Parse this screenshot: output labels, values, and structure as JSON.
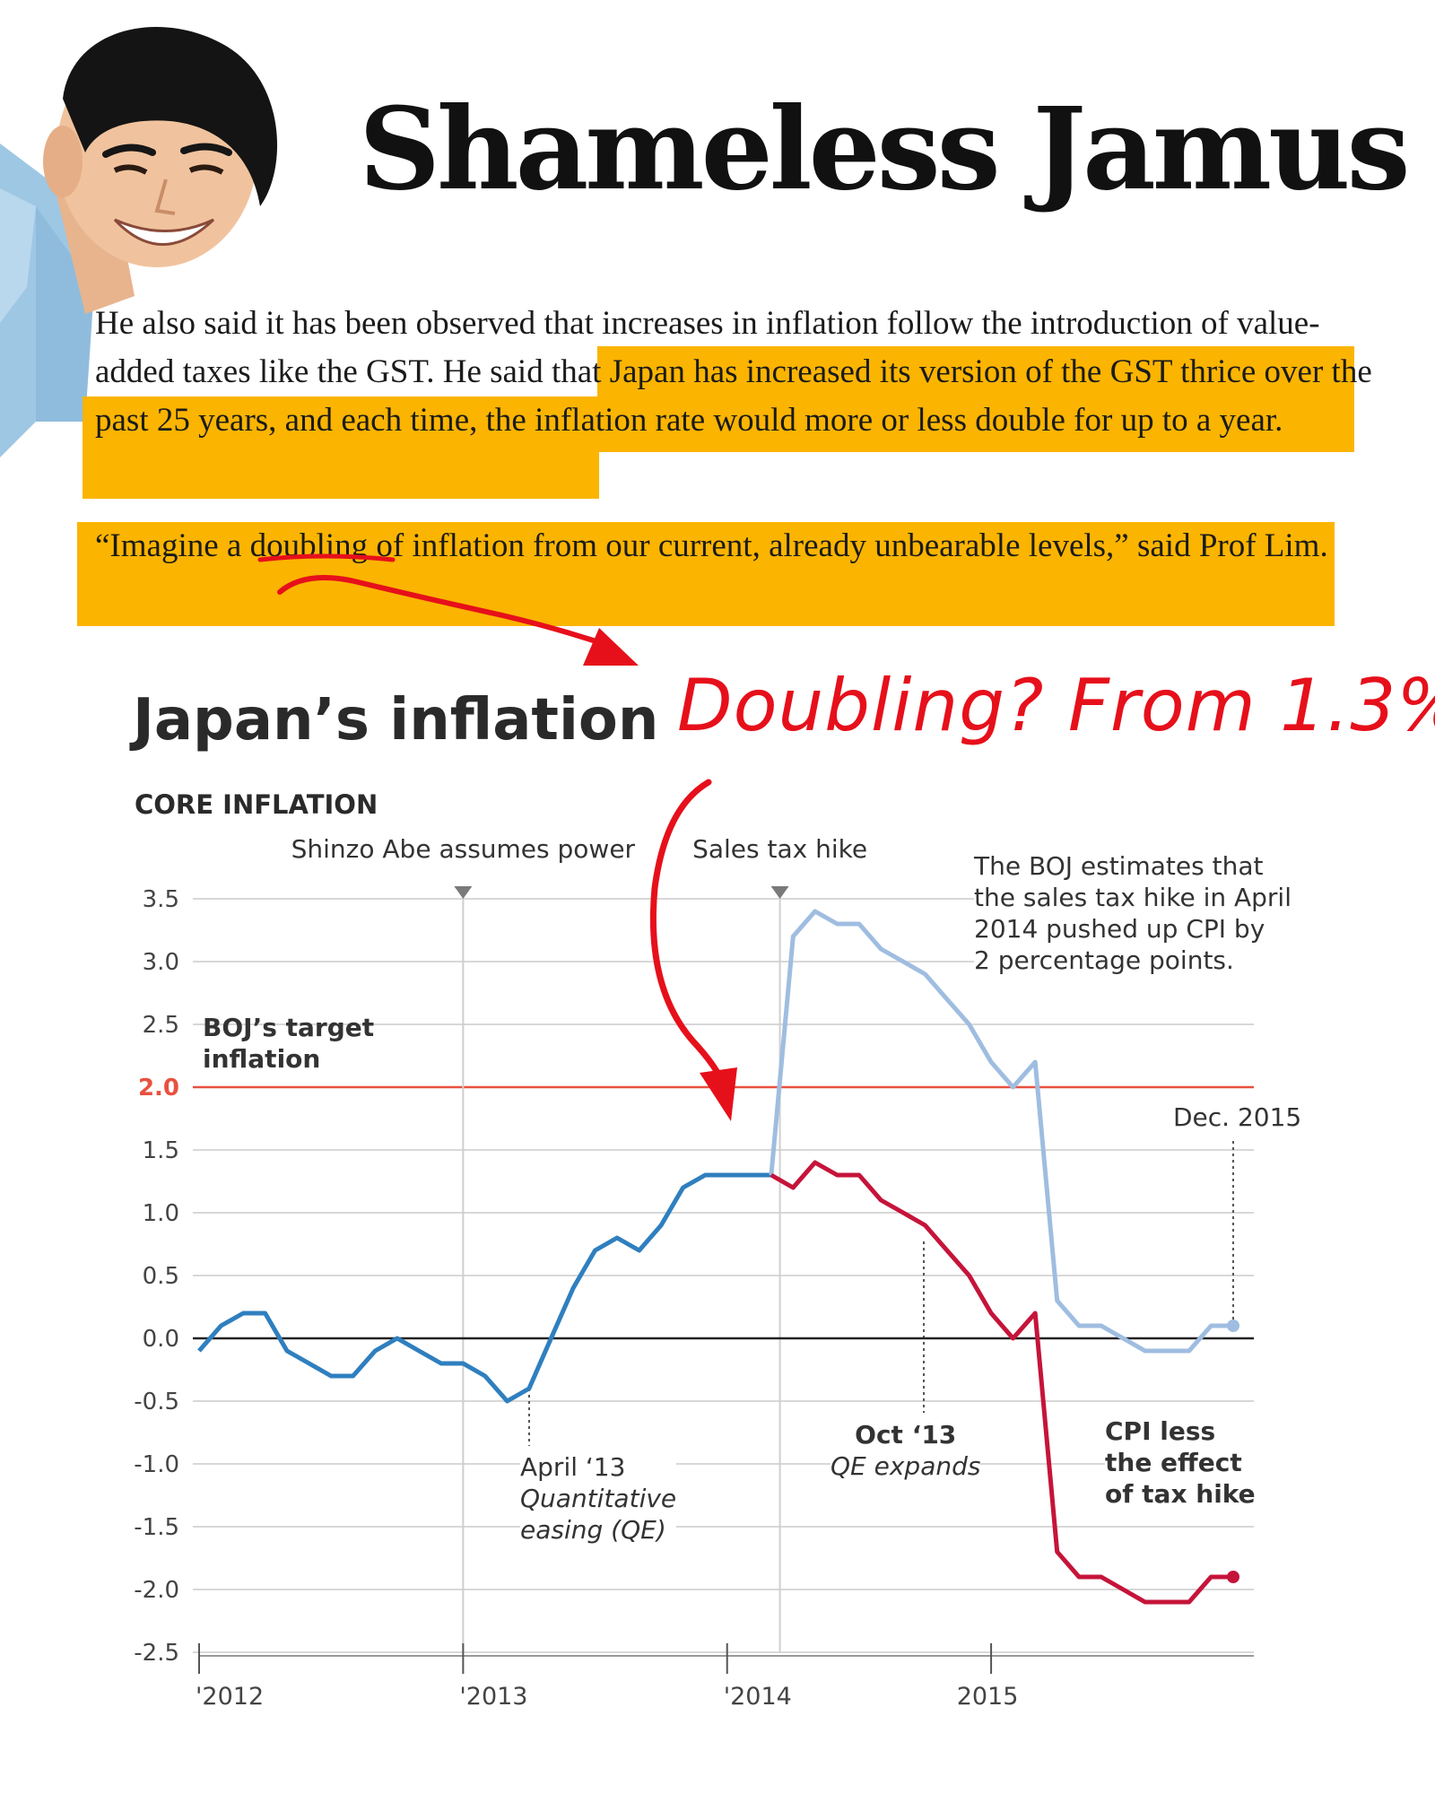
{
  "headline": "Shameless Jamus",
  "article": {
    "para1_plain": "He also said it has been observed that increases in inflation follow the introduction of value-added taxes like the GST. ",
    "para1_highlight": "He said that Japan has increased its version of the GST thrice over the past 25 years, and each time, the inflation rate would more or less double for up to a year.",
    "para2_quote_start": "“Imagine a ",
    "para2_underlined": "doubling",
    "para2_quote_end": " of inflation from our current, already unbearable levels,” said Prof Lim."
  },
  "handwritten_note": "Doubling? From 1.3%",
  "colors": {
    "highlight": "#fbb400",
    "annotation_red": "#e6101b",
    "core_inflation": "#2f7fbf",
    "tax_hike_portion": "#9fbde0",
    "cpi_less_tax": "#c5143a",
    "target_line": "#e8513f"
  },
  "chart_data": {
    "type": "line",
    "title": "Japan’s inflation",
    "subtitle": "CORE INFLATION",
    "ylim": [
      -2.5,
      3.5
    ],
    "yticks": [
      "3.5",
      "3.0",
      "2.5",
      "2.0",
      "1.5",
      "1.0",
      "0.5",
      "0.0",
      "-0.5",
      "-1.0",
      "-1.5",
      "-2.0",
      "-2.5"
    ],
    "xticks": [
      {
        "label": "'2012",
        "x": 2012.0
      },
      {
        "label": "'2013",
        "x": 2013.0
      },
      {
        "label": "'2014",
        "x": 2014.0
      },
      {
        "label": "2015",
        "x": 2015.0
      }
    ],
    "reference_line": {
      "value": 2.0,
      "label": "BOJ’s target inflation"
    },
    "series": [
      {
        "name": "",
        "color": "#2f7fbf",
        "x": [
          2012.0,
          2012.083,
          2012.167,
          2012.25,
          2012.333,
          2012.417,
          2012.5,
          2012.583,
          2012.667,
          2012.75,
          2012.833,
          2012.917,
          2013.0,
          2013.083,
          2013.167,
          2013.25,
          2013.333,
          2013.417,
          2013.5,
          2013.583,
          2013.667,
          2013.75,
          2013.833,
          2013.917,
          2014.0,
          2014.083,
          2014.167
        ],
        "y": [
          -0.1,
          0.1,
          0.2,
          0.2,
          -0.1,
          -0.2,
          -0.3,
          -0.3,
          -0.1,
          0.0,
          -0.1,
          -0.2,
          -0.2,
          -0.3,
          -0.5,
          -0.4,
          0.0,
          0.4,
          0.7,
          0.8,
          0.7,
          0.9,
          1.2,
          1.3,
          1.3,
          1.3,
          1.3
        ]
      },
      {
        "name": "",
        "color": "#9fbde0",
        "x": [
          2014.167,
          2014.25,
          2014.333,
          2014.417,
          2014.5,
          2014.583,
          2014.667,
          2014.75,
          2014.833,
          2014.917,
          2015.0,
          2015.083,
          2015.167,
          2015.25,
          2015.333,
          2015.417,
          2015.5,
          2015.583,
          2015.667,
          2015.75,
          2015.833,
          2015.917
        ],
        "y": [
          1.3,
          3.2,
          3.4,
          3.3,
          3.3,
          3.1,
          3.0,
          2.9,
          2.7,
          2.5,
          2.2,
          2.0,
          2.2,
          0.3,
          0.1,
          0.1,
          0.0,
          -0.1,
          -0.1,
          -0.1,
          0.1,
          0.1
        ]
      },
      {
        "name": "CPI less the effect of tax hike",
        "color": "#c5143a",
        "x": [
          2014.167,
          2014.25,
          2014.333,
          2014.417,
          2014.5,
          2014.583,
          2014.667,
          2014.75,
          2014.833,
          2014.917,
          2015.0,
          2015.083,
          2015.167,
          2015.25,
          2015.333,
          2015.417,
          2015.5,
          2015.583,
          2015.667,
          2015.75,
          2015.833,
          2015.917
        ],
        "y": [
          1.3,
          1.2,
          1.4,
          1.3,
          1.3,
          1.1,
          1.0,
          0.9,
          0.7,
          0.5,
          0.2,
          0.0,
          0.2,
          -1.7,
          -1.9,
          -1.9,
          -2.0,
          -2.1,
          -2.1,
          -2.1,
          -1.9,
          -1.9
        ]
      }
    ],
    "events": [
      {
        "label": "Shinzo Abe assumes power",
        "x": 2013.0
      },
      {
        "label": "Sales tax hike",
        "x": 2014.2
      }
    ],
    "annotations": {
      "boj_note": [
        "The BOJ estimates that",
        "the sales tax hike in April",
        "2014 pushed up CPI by",
        "2 percentage points."
      ],
      "dec2015": "Dec. 2015",
      "qe_bold": "April ‘13",
      "qe_italic": [
        "Quantitative",
        "easing (QE)"
      ],
      "qe2_bold": "Oct ‘13",
      "qe2_italic": "QE expands",
      "cpi_less": [
        "CPI less",
        "the effect",
        "of tax hike"
      ],
      "boj_target_lines": [
        "BOJ’s target",
        "inflation"
      ]
    }
  }
}
